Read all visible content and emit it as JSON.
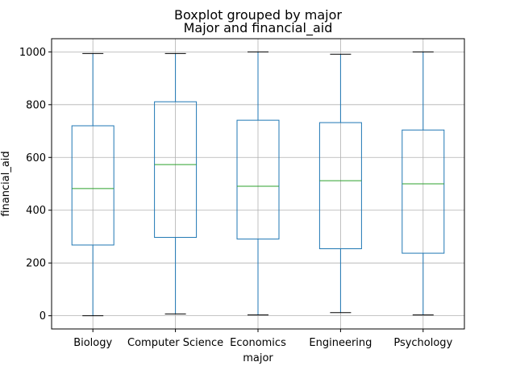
{
  "chart_data": {
    "type": "boxplot",
    "suptitle": "Boxplot grouped by major",
    "title": "Major and financial_aid",
    "xlabel": "major",
    "ylabel": "financial_aid",
    "ylim": [
      -50,
      1050
    ],
    "yticks": [
      0,
      200,
      400,
      600,
      800,
      1000
    ],
    "grid": true,
    "categories": [
      "Biology",
      "Computer Science",
      "Economics",
      "Engineering",
      "Psychology"
    ],
    "boxes": [
      {
        "min": 0,
        "q1": 268,
        "median": 482,
        "q3": 720,
        "max": 994
      },
      {
        "min": 7,
        "q1": 297,
        "median": 573,
        "q3": 811,
        "max": 994
      },
      {
        "min": 3,
        "q1": 291,
        "median": 491,
        "q3": 741,
        "max": 1000
      },
      {
        "min": 12,
        "q1": 254,
        "median": 512,
        "q3": 732,
        "max": 991
      },
      {
        "min": 3,
        "q1": 237,
        "median": 500,
        "q3": 704,
        "max": 1000
      }
    ],
    "colors": {
      "box": "#1f77b4",
      "median": "#2ca02c",
      "grid": "#b0b0b0",
      "whisker_cap": "#000000"
    }
  }
}
